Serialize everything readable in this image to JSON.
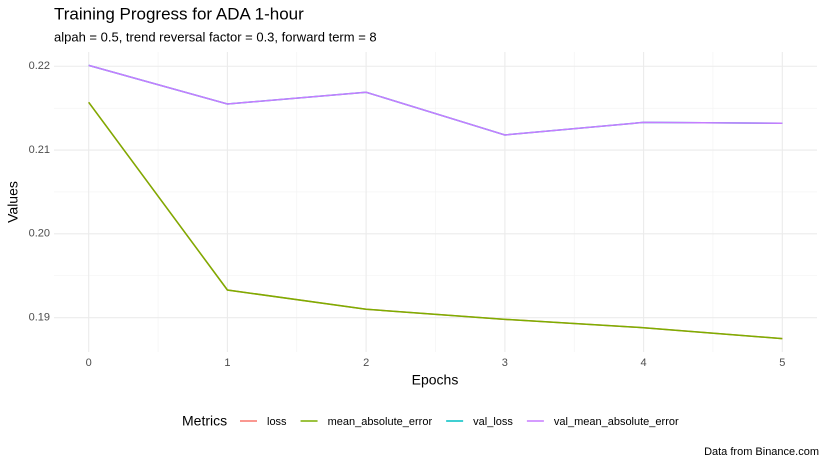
{
  "chart_data": {
    "type": "line",
    "title": "Training Progress for ADA 1-hour",
    "subtitle": "alpah = 0.5, trend reversal factor = 0.3, forward term = 8",
    "x_label": "Epochs",
    "y_label": "Values",
    "legend_title": "Metrics",
    "caption": "Data from Binance.com",
    "x": [
      0,
      1,
      2,
      3,
      4,
      5
    ],
    "series": [
      {
        "name": "loss",
        "color": "#F8766D",
        "values": [
          0.2157,
          0.1933,
          0.191,
          0.1898,
          0.1888,
          0.1875
        ]
      },
      {
        "name": "mean_absolute_error",
        "color": "#7CAE00",
        "values": [
          0.2157,
          0.1933,
          0.191,
          0.1898,
          0.1888,
          0.1875
        ]
      },
      {
        "name": "val_loss",
        "color": "#00BFC4",
        "values": [
          0.2201,
          0.2155,
          0.2169,
          0.2118,
          0.2133,
          0.2132
        ]
      },
      {
        "name": "val_mean_absolute_error",
        "color": "#C77CFF",
        "values": [
          0.2201,
          0.2155,
          0.2169,
          0.2118,
          0.2133,
          0.2132
        ]
      }
    ],
    "xlim": [
      -0.25,
      5.25
    ],
    "xticks": [
      0,
      1,
      2,
      3,
      4,
      5
    ],
    "ylim": [
      0.1859,
      0.2217
    ],
    "yticks": [
      0.19,
      {
        "value": 0.2,
        "label": "0.20"
      },
      0.21,
      0.22
    ],
    "grid": true,
    "legend_position": "bottom"
  }
}
